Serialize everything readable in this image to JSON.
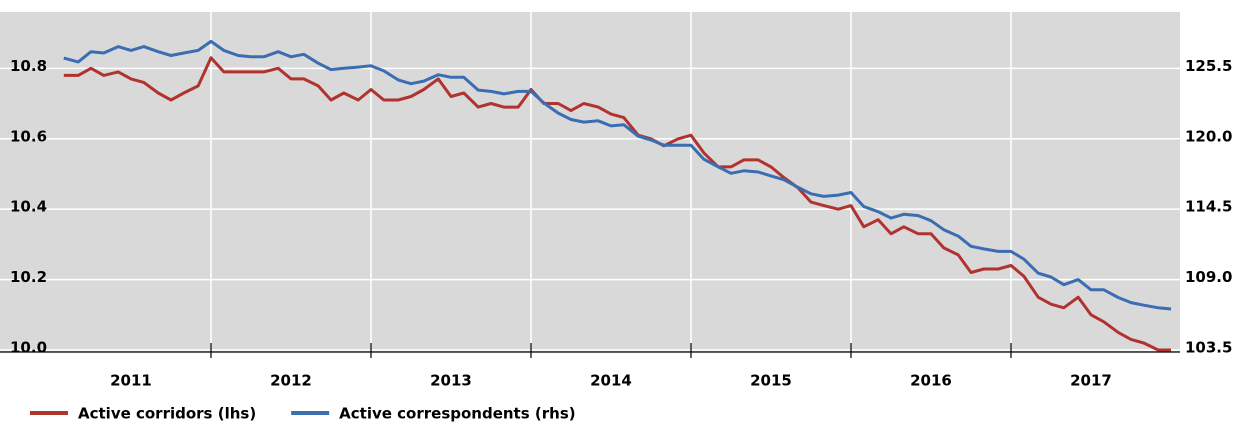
{
  "chart_data": {
    "type": "line",
    "x": [
      2011.08,
      2011.17,
      2011.25,
      2011.33,
      2011.42,
      2011.5,
      2011.58,
      2011.67,
      2011.75,
      2011.83,
      2011.92,
      2012,
      2012.08,
      2012.17,
      2012.25,
      2012.33,
      2012.42,
      2012.5,
      2012.58,
      2012.67,
      2012.75,
      2012.83,
      2012.92,
      2013,
      2013.08,
      2013.17,
      2013.25,
      2013.33,
      2013.42,
      2013.5,
      2013.58,
      2013.67,
      2013.75,
      2013.83,
      2013.92,
      2014,
      2014.08,
      2014.17,
      2014.25,
      2014.33,
      2014.42,
      2014.5,
      2014.58,
      2014.67,
      2014.75,
      2014.83,
      2014.92,
      2015,
      2015.08,
      2015.17,
      2015.25,
      2015.33,
      2015.42,
      2015.5,
      2015.58,
      2015.67,
      2015.75,
      2015.83,
      2015.92,
      2016,
      2016.08,
      2016.17,
      2016.25,
      2016.33,
      2016.42,
      2016.5,
      2016.58,
      2016.67,
      2016.75,
      2016.83,
      2016.92,
      2017,
      2017.08,
      2017.17,
      2017.25,
      2017.33,
      2017.42,
      2017.5,
      2017.58,
      2017.67,
      2017.75,
      2017.83,
      2017.92,
      2018
    ],
    "series": [
      {
        "name": "Active corridors (lhs)",
        "color": "#b0332f",
        "values": [
          10.78,
          10.78,
          10.8,
          10.78,
          10.79,
          10.77,
          10.76,
          10.73,
          10.71,
          10.73,
          10.75,
          10.83,
          10.79,
          10.79,
          10.79,
          10.79,
          10.8,
          10.77,
          10.77,
          10.75,
          10.71,
          10.73,
          10.71,
          10.74,
          10.71,
          10.71,
          10.72,
          10.74,
          10.77,
          10.72,
          10.73,
          10.69,
          10.7,
          10.69,
          10.69,
          10.74,
          10.7,
          10.7,
          10.68,
          10.7,
          10.69,
          10.67,
          10.66,
          10.61,
          10.6,
          10.58,
          10.6,
          10.61,
          10.56,
          10.52,
          10.52,
          10.54,
          10.54,
          10.52,
          10.49,
          10.46,
          10.42,
          10.41,
          10.4,
          10.41,
          10.35,
          10.37,
          10.33,
          10.35,
          10.33,
          10.33,
          10.29,
          10.27,
          10.22,
          10.23,
          10.23,
          10.24,
          10.21,
          10.15,
          10.13,
          10.12,
          10.15,
          10.1,
          10.08,
          10.05,
          10.03,
          10.02,
          10.0,
          10.0
        ]
      },
      {
        "name": "Active correspondents (rhs)",
        "color": "#3b6db3",
        "axis": "y2",
        "values": [
          126.3,
          126.0,
          126.8,
          126.7,
          127.2,
          126.9,
          127.2,
          126.8,
          126.5,
          126.7,
          126.9,
          127.6,
          126.9,
          126.5,
          126.4,
          126.4,
          126.8,
          126.4,
          126.6,
          125.9,
          125.4,
          125.5,
          125.6,
          125.7,
          125.3,
          124.6,
          124.3,
          124.5,
          125.0,
          124.8,
          124.8,
          123.8,
          123.7,
          123.5,
          123.7,
          123.7,
          122.8,
          122.0,
          121.5,
          121.3,
          121.4,
          121.0,
          121.1,
          120.2,
          119.9,
          119.5,
          119.5,
          119.5,
          118.4,
          117.8,
          117.3,
          117.5,
          117.4,
          117.1,
          116.8,
          116.2,
          115.7,
          115.5,
          115.6,
          115.8,
          114.7,
          114.3,
          113.8,
          114.1,
          114.0,
          113.6,
          112.9,
          112.4,
          111.6,
          111.4,
          111.2,
          111.2,
          110.6,
          109.5,
          109.2,
          108.6,
          109.0,
          108.2,
          108.2,
          107.6,
          107.2,
          107.0,
          106.8,
          106.7
        ]
      }
    ],
    "xlim": [
      2011,
      2018
    ],
    "xticks": [
      2011,
      2012,
      2013,
      2014,
      2015,
      2016,
      2017
    ],
    "ylim": [
      10.0,
      10.96
    ],
    "yticks": [
      {
        "value": 10,
        "label": "10.0"
      },
      10.2,
      10.4,
      10.6,
      10.8
    ],
    "y2lim": [
      103.5,
      129.9
    ],
    "y2ticks": [
      103.5,
      {
        "value": 109,
        "label": "109.0"
      },
      114.5,
      {
        "value": 120,
        "label": "120.0"
      },
      125.5
    ],
    "grid": true
  }
}
